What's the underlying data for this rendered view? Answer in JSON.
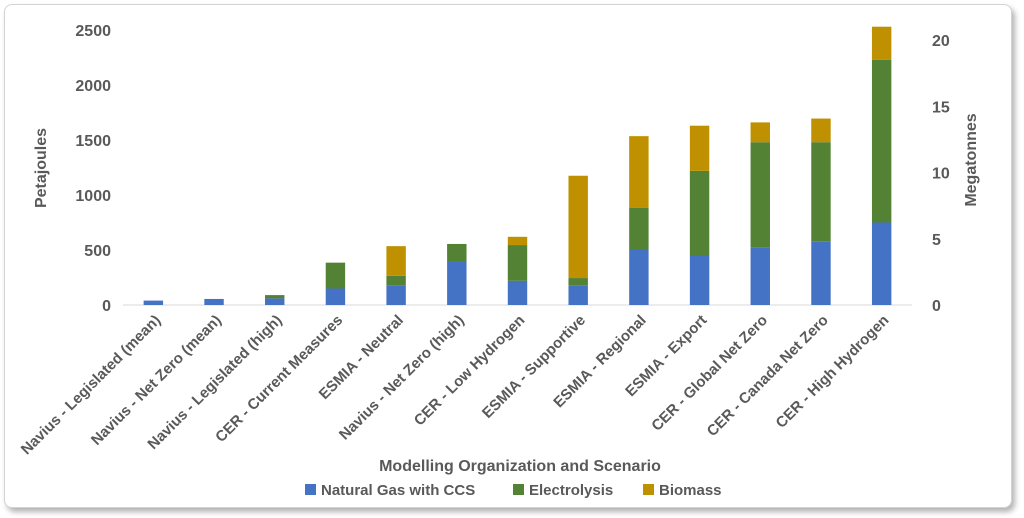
{
  "chart_data": {
    "type": "bar",
    "stacked": true,
    "categories": [
      "Navius - Legislated (mean)",
      "Navius - Net Zero (mean)",
      "Navius - Legislated (high)",
      "CER - Current Measures",
      "ESMIA - Neutral",
      "Navius - Net Zero (high)",
      "CER - Low Hydrogen",
      "ESMIA - Supportive",
      "ESMIA - Regional",
      "ESMIA - Export",
      "CER - Global Net Zero",
      "CER - Canada Net Zero",
      "CER - High Hydrogen"
    ],
    "series": [
      {
        "name": "Natural Gas with CCS",
        "color": "#4472c4",
        "values": [
          40,
          55,
          60,
          150,
          180,
          400,
          220,
          180,
          500,
          450,
          520,
          580,
          750
        ]
      },
      {
        "name": "Electrolysis",
        "color": "#548235",
        "values": [
          0,
          0,
          30,
          235,
          85,
          155,
          325,
          65,
          385,
          770,
          960,
          900,
          1480
        ]
      },
      {
        "name": "Biomass",
        "color": "#bf9000",
        "values": [
          0,
          0,
          0,
          0,
          270,
          0,
          75,
          930,
          650,
          410,
          180,
          215,
          300
        ]
      }
    ],
    "xlabel": "Modelling Organization and Scenario",
    "ylabel": "Petajoules",
    "y2label": "Megatonnes",
    "ylim": [
      0,
      2500
    ],
    "yticks": [
      0,
      500,
      1000,
      1500,
      2000,
      2500
    ],
    "y2lim": [
      0,
      20
    ],
    "y2ticks": [
      0,
      5,
      10,
      15,
      20
    ],
    "grid": false,
    "legend_position": "bottom"
  }
}
